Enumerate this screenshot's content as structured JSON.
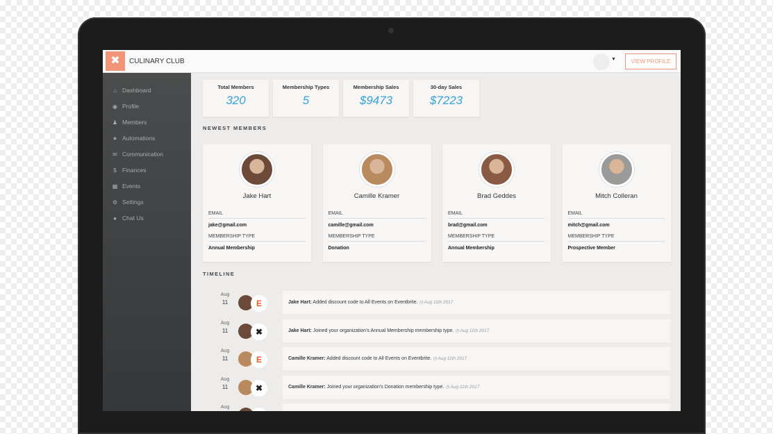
{
  "header": {
    "brand": "CULINARY CLUB",
    "view_profile": "VIEW PROFILE"
  },
  "sidebar": {
    "items": [
      {
        "icon": "home-icon",
        "glyph": "⌂",
        "label": "Dashboard"
      },
      {
        "icon": "globe-icon",
        "glyph": "◉",
        "label": "Profile"
      },
      {
        "icon": "user-icon",
        "glyph": "♟",
        "label": "Members"
      },
      {
        "icon": "star-icon",
        "glyph": "★",
        "label": "Automations"
      },
      {
        "icon": "envelope-icon",
        "glyph": "✉",
        "label": "Communication"
      },
      {
        "icon": "dollar-icon",
        "glyph": "$",
        "label": "Finances"
      },
      {
        "icon": "calendar-icon",
        "glyph": "▦",
        "label": "Events"
      },
      {
        "icon": "gear-icon",
        "glyph": "⚙",
        "label": "Settings"
      },
      {
        "icon": "chat-icon",
        "glyph": "●",
        "label": "Chat Us"
      }
    ]
  },
  "stats": [
    {
      "label": "Total Members",
      "value": "320"
    },
    {
      "label": "Membership Types",
      "value": "5"
    },
    {
      "label": "Membership Sales",
      "value": "$9473"
    },
    {
      "label": "30-day Sales",
      "value": "$7223"
    }
  ],
  "newest": {
    "title": "NEWEST MEMBERS",
    "email_label": "EMAIL",
    "type_label": "MEMBERSHIP TYPE",
    "members": [
      {
        "name": "Jake Hart",
        "email": "jake@gmail.com",
        "type": "Annual Membership"
      },
      {
        "name": "Camille Kramer",
        "email": "camille@gmail.com",
        "type": "Donation"
      },
      {
        "name": "Brad Geddes",
        "email": "brad@gmail.com",
        "type": "Annual Membership"
      },
      {
        "name": "Mitch Colleran",
        "email": "mitch@gmail.com",
        "type": "Prospective Member"
      }
    ]
  },
  "timeline": {
    "title": "TIMELINE",
    "items": [
      {
        "month": "Aug",
        "day": "11",
        "source": "E",
        "who": "Jake Hart:",
        "text": " Added discount code to All Events on Eventbrite.",
        "when": "Aug 11th 2017"
      },
      {
        "month": "Aug",
        "day": "11",
        "source": "✖",
        "who": "Jake Hart:",
        "text": " Joined your organization's Annual Membership membership type.",
        "when": "Aug 11th 2017"
      },
      {
        "month": "Aug",
        "day": "11",
        "source": "E",
        "who": "Camille Kramer:",
        "text": " Added discount code to All Events on Eventbrite.",
        "when": "Aug 11th 2017"
      },
      {
        "month": "Aug",
        "day": "11",
        "source": "✖",
        "who": "Camille Kramer:",
        "text": " Joined your organization's Donation membership type.",
        "when": "Aug 11th 2017"
      },
      {
        "month": "Aug",
        "day": "",
        "source": "",
        "who": "",
        "text": "",
        "when": ""
      }
    ]
  },
  "colors": {
    "accent": "#f0957a",
    "stat": "#36a3d9",
    "sidebar": "#3f4244"
  }
}
